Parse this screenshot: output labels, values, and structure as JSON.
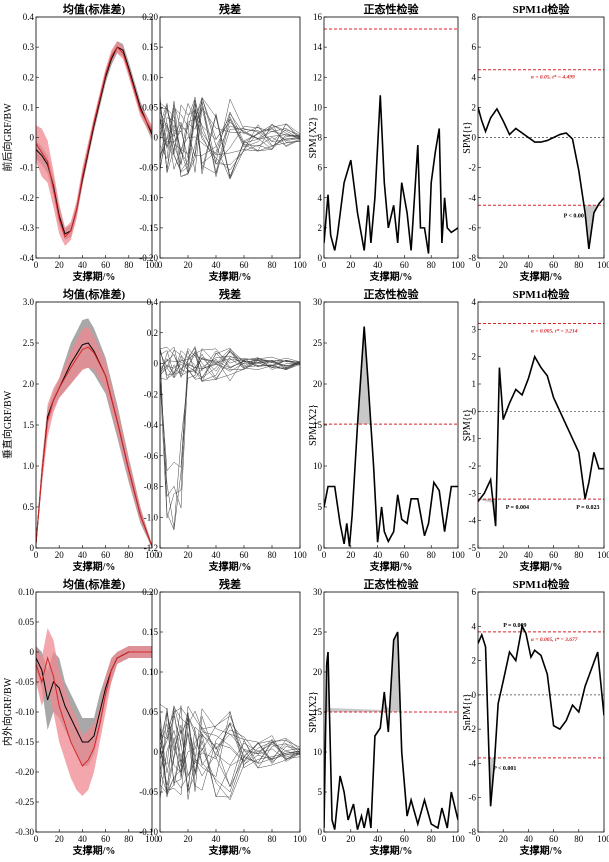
{
  "chart_data": [
    {
      "type": "line",
      "row": 0,
      "col": 0,
      "kind": "mean",
      "title": "均值(标准差)",
      "xlabel": "支撑期/%",
      "ylabel": "前后向GRF/BW",
      "xlim": [
        0,
        100
      ],
      "ylim": [
        -0.4,
        0.4
      ],
      "yticks": [
        "-0.4",
        "-0.3",
        "-0.2",
        "-0.1",
        "0",
        "0.1",
        "0.2",
        "0.3",
        "0.4"
      ],
      "x": [
        0,
        5,
        10,
        15,
        20,
        25,
        30,
        35,
        40,
        50,
        60,
        65,
        70,
        75,
        80,
        90,
        100
      ],
      "series": [
        {
          "values": [
            -0.04,
            -0.06,
            -0.09,
            -0.16,
            -0.26,
            -0.32,
            -0.31,
            -0.24,
            -0.14,
            0.04,
            0.2,
            0.26,
            0.3,
            0.29,
            0.23,
            0.1,
            0.01
          ],
          "sd": [
            0.03,
            0.03,
            0.03,
            0.03,
            0.03,
            0.02,
            0.02,
            0.02,
            0.02,
            0.02,
            0.02,
            0.02,
            0.02,
            0.02,
            0.02,
            0.02,
            0.02
          ],
          "color": "#000000",
          "band": "#999999"
        },
        {
          "values": [
            -0.02,
            -0.05,
            -0.08,
            -0.17,
            -0.27,
            -0.33,
            -0.31,
            -0.24,
            -0.13,
            0.05,
            0.21,
            0.27,
            0.3,
            0.28,
            0.22,
            0.09,
            0.02
          ],
          "sd": [
            0.06,
            0.08,
            0.07,
            0.06,
            0.05,
            0.03,
            0.03,
            0.03,
            0.03,
            0.02,
            0.02,
            0.02,
            0.02,
            0.02,
            0.02,
            0.02,
            0.02
          ],
          "color": "#d62728",
          "band": "#ef8a92"
        }
      ]
    },
    {
      "type": "line",
      "row": 0,
      "col": 1,
      "kind": "resid",
      "title": "残差",
      "xlabel": "支撑期/%",
      "ylabel": "",
      "xlim": [
        0,
        100
      ],
      "ylim": [
        -0.2,
        0.2
      ],
      "yticks": [
        "-0.20",
        "-0.15",
        "-0.10",
        "-0.05",
        "0",
        "0.05",
        "0.10",
        "0.15",
        "0.20"
      ],
      "nlines": 18,
      "amp": 0.07,
      "seed": 11,
      "spike": 0
    },
    {
      "type": "line",
      "row": 0,
      "col": 2,
      "kind": "spm",
      "title": "正态性检验",
      "xlabel": "支撑期/%",
      "ylabel": "SPM{X2}",
      "xlim": [
        0,
        100
      ],
      "ylim": [
        0,
        16
      ],
      "yticks": [
        "0",
        "2",
        "4",
        "6",
        "8",
        "10",
        "12",
        "14",
        "16"
      ],
      "threshold": 15.2,
      "x": [
        0,
        3,
        5,
        8,
        10,
        15,
        20,
        25,
        30,
        33,
        35,
        38,
        42,
        45,
        48,
        52,
        55,
        58,
        62,
        65,
        70,
        72,
        75,
        78,
        80,
        83,
        86,
        88,
        90,
        92,
        95,
        100
      ],
      "values": [
        1,
        4.2,
        1.5,
        0.5,
        1.5,
        5,
        6.5,
        3,
        0.5,
        3.5,
        1,
        4,
        10.8,
        5,
        2,
        3.5,
        1,
        5,
        3,
        0.5,
        7.5,
        2,
        2,
        0.3,
        5,
        7,
        8.6,
        1,
        4,
        2,
        1.7,
        2
      ]
    },
    {
      "type": "line",
      "row": 0,
      "col": 3,
      "kind": "spmt",
      "title": "SPM1d检验",
      "xlabel": "支撑期/%",
      "ylabel": "SPM{t}",
      "xlim": [
        0,
        100
      ],
      "ylim": [
        -8,
        8
      ],
      "yticks": [
        "-8",
        "-6",
        "-4",
        "-2",
        "0",
        "2",
        "4",
        "6",
        "8"
      ],
      "threshold": 4.499,
      "annotation": "α = 0.05, t* = 4.499",
      "pvalues": [
        "P < 0.001"
      ],
      "x": [
        0,
        3,
        6,
        10,
        15,
        20,
        25,
        30,
        35,
        40,
        45,
        50,
        55,
        60,
        65,
        70,
        75,
        80,
        85,
        88,
        92,
        96,
        100
      ],
      "values": [
        2,
        1.1,
        0.4,
        1.3,
        1.9,
        1.1,
        0.2,
        0.6,
        0.3,
        0,
        -0.3,
        -0.3,
        -0.2,
        0,
        0.2,
        0.3,
        -0.1,
        -2.2,
        -5,
        -7.4,
        -5,
        -4.4,
        -4
      ]
    },
    {
      "type": "line",
      "row": 1,
      "col": 0,
      "kind": "mean",
      "title": "均值(标准差)",
      "xlabel": "支撑期/%",
      "ylabel": "垂直向GRF/BW",
      "xlim": [
        0,
        100
      ],
      "ylim": [
        0,
        3
      ],
      "yticks": [
        "0",
        "0.5",
        "1.0",
        "1.5",
        "2.0",
        "2.5",
        "3.0"
      ],
      "x": [
        0,
        5,
        10,
        15,
        20,
        30,
        40,
        45,
        50,
        60,
        70,
        80,
        90,
        100
      ],
      "series": [
        {
          "values": [
            0.05,
            0.9,
            1.6,
            1.8,
            1.95,
            2.25,
            2.48,
            2.5,
            2.4,
            2.1,
            1.55,
            0.95,
            0.4,
            0.02
          ],
          "sd": [
            0.05,
            0.1,
            0.1,
            0.1,
            0.12,
            0.25,
            0.3,
            0.3,
            0.28,
            0.22,
            0.2,
            0.15,
            0.1,
            0.02
          ],
          "color": "#000000",
          "band": "#999999"
        },
        {
          "values": [
            0.05,
            0.9,
            1.55,
            1.8,
            1.95,
            2.2,
            2.42,
            2.45,
            2.38,
            2.1,
            1.55,
            0.95,
            0.4,
            0.02
          ],
          "sd": [
            0.05,
            0.15,
            0.2,
            0.15,
            0.12,
            0.2,
            0.25,
            0.25,
            0.2,
            0.18,
            0.15,
            0.12,
            0.08,
            0.02
          ],
          "color": "#d62728",
          "band": "#ef8a92"
        }
      ]
    },
    {
      "type": "line",
      "row": 1,
      "col": 1,
      "kind": "resid",
      "title": "残差",
      "xlabel": "支撑期/%",
      "ylabel": "",
      "xlim": [
        0,
        100
      ],
      "ylim": [
        -1.2,
        0.4
      ],
      "yticks": [
        "-1.2",
        "-1.0",
        "-0.8",
        "-0.6",
        "-0.4",
        "-0.2",
        "0",
        "0.2",
        "0.4"
      ],
      "nlines": 18,
      "amp": 0.12,
      "seed": 23,
      "spike": -1.1
    },
    {
      "type": "line",
      "row": 1,
      "col": 2,
      "kind": "spm",
      "title": "正态性检验",
      "xlabel": "支撑期/%",
      "ylabel": "SPM{X2}",
      "xlim": [
        0,
        100
      ],
      "ylim": [
        0,
        30
      ],
      "yticks": [
        "0",
        "5",
        "10",
        "15",
        "20",
        "25",
        "30"
      ],
      "threshold": 15.1,
      "x": [
        0,
        3,
        8,
        12,
        15,
        17,
        19,
        21,
        25,
        30,
        33,
        37,
        40,
        43,
        45,
        48,
        52,
        55,
        58,
        62,
        65,
        70,
        75,
        78,
        82,
        86,
        90,
        95
      ],
      "values": [
        5,
        7.5,
        7.5,
        3,
        0.5,
        3,
        0.2,
        4,
        15,
        27,
        20,
        10,
        0.7,
        5,
        2,
        0.8,
        2,
        6.5,
        3.5,
        3,
        6,
        6,
        1.5,
        3,
        8,
        7,
        2,
        7.5
      ]
    },
    {
      "type": "line",
      "row": 1,
      "col": 3,
      "kind": "spmt",
      "title": "SPM1d检验",
      "xlabel": "支撑期/%",
      "ylabel": "SPM{t}",
      "xlim": [
        0,
        100
      ],
      "ylim": [
        -5,
        4
      ],
      "yticks": [
        "-5",
        "-4",
        "-3",
        "-2",
        "-1",
        "0",
        "1",
        "2",
        "3",
        "4"
      ],
      "threshold": 3.214,
      "annotation": "α = 0.005, t* = 3.214",
      "pvalues": [
        "P = 0.004",
        "P = 0.023"
      ],
      "x": [
        0,
        5,
        10,
        14,
        17,
        20,
        25,
        30,
        35,
        40,
        45,
        50,
        55,
        60,
        70,
        80,
        85,
        88,
        92,
        96
      ],
      "values": [
        -3.3,
        -3.0,
        -2.5,
        -4.2,
        1.6,
        -0.3,
        0.3,
        0.8,
        0.6,
        1.2,
        2.0,
        1.6,
        1.3,
        0.5,
        -0.5,
        -1.5,
        -3.2,
        -2.6,
        -1.5,
        -2.1
      ]
    },
    {
      "type": "line",
      "row": 2,
      "col": 0,
      "kind": "mean",
      "title": "均值(标准差)",
      "xlabel": "支撑期/%",
      "ylabel": "内外向GRF/BW",
      "xlim": [
        0,
        100
      ],
      "ylim": [
        -0.3,
        0.1
      ],
      "yticks": [
        "-0.30",
        "-0.25",
        "-0.20",
        "-0.15",
        "-0.10",
        "-0.05",
        "0",
        "0.05",
        "0.10"
      ],
      "x": [
        0,
        5,
        10,
        15,
        20,
        25,
        30,
        35,
        40,
        45,
        50,
        55,
        60,
        65,
        70,
        80,
        90,
        100
      ],
      "series": [
        {
          "values": [
            -0.01,
            -0.03,
            -0.08,
            -0.05,
            -0.06,
            -0.09,
            -0.11,
            -0.13,
            -0.15,
            -0.15,
            -0.14,
            -0.1,
            -0.06,
            -0.03,
            -0.01,
            0,
            0,
            0
          ],
          "sd": [
            0.02,
            0.03,
            0.05,
            0.05,
            0.05,
            0.04,
            0.04,
            0.04,
            0.04,
            0.04,
            0.03,
            0.03,
            0.02,
            0.02,
            0.01,
            0.01,
            0.01,
            0.01
          ],
          "color": "#000000",
          "band": "#999999"
        },
        {
          "values": [
            -0.02,
            -0.05,
            -0.01,
            -0.04,
            -0.09,
            -0.12,
            -0.15,
            -0.17,
            -0.19,
            -0.18,
            -0.16,
            -0.12,
            -0.07,
            -0.03,
            -0.01,
            0,
            0,
            0
          ],
          "sd": [
            0.03,
            0.04,
            0.05,
            0.06,
            0.06,
            0.06,
            0.06,
            0.06,
            0.05,
            0.05,
            0.04,
            0.03,
            0.03,
            0.02,
            0.01,
            0.01,
            0.01,
            0.01
          ],
          "color": "#d62728",
          "band": "#ef8a92"
        }
      ]
    },
    {
      "type": "line",
      "row": 2,
      "col": 1,
      "kind": "resid",
      "title": "残差",
      "xlabel": "支撑期/%",
      "ylabel": "",
      "xlim": [
        0,
        100
      ],
      "ylim": [
        -0.1,
        0.2
      ],
      "yticks": [
        "-0.10",
        "-0.05",
        "0",
        "0.05",
        "0.10",
        "0.15",
        "0.20"
      ],
      "nlines": 18,
      "amp": 0.06,
      "seed": 37,
      "spike": 0
    },
    {
      "type": "line",
      "row": 2,
      "col": 2,
      "kind": "spm",
      "title": "正态性检验",
      "xlabel": "支撑期/%",
      "ylabel": "SPM{X2}",
      "xlim": [
        0,
        100
      ],
      "ylim": [
        0,
        30
      ],
      "yticks": [
        "0",
        "5",
        "10",
        "15",
        "20",
        "25",
        "30"
      ],
      "threshold": 15,
      "x": [
        0,
        2,
        3,
        6,
        8,
        12,
        15,
        18,
        22,
        25,
        28,
        30,
        33,
        35,
        38,
        42,
        45,
        48,
        52,
        55,
        58,
        62,
        65,
        70,
        75,
        80,
        85,
        88,
        92,
        95,
        100
      ],
      "values": [
        0.5,
        21,
        22.5,
        1.5,
        0.3,
        7,
        5,
        1.5,
        3.5,
        0.3,
        2,
        0.5,
        3,
        0.5,
        12,
        13,
        17.5,
        12.5,
        24,
        25,
        10,
        2,
        4,
        1,
        4,
        1,
        0.5,
        3,
        0.5,
        5,
        1.5
      ]
    },
    {
      "type": "line",
      "row": 2,
      "col": 3,
      "kind": "spmt",
      "title": "SPM1d检验",
      "xlabel": "支撑期/%",
      "ylabel": "SnPM{t}",
      "xlim": [
        0,
        100
      ],
      "ylim": [
        -8,
        6
      ],
      "yticks": [
        "-8",
        "-6",
        "-4",
        "-2",
        "0",
        "2",
        "4",
        "6"
      ],
      "threshold": 3.677,
      "annotation": "α = 0.005, t* = 3.677",
      "pvalues": [
        "P = 0.009",
        "P < 0.001"
      ],
      "x": [
        0,
        3,
        6,
        10,
        13,
        16,
        20,
        25,
        30,
        35,
        38,
        42,
        45,
        50,
        55,
        60,
        65,
        70,
        75,
        80,
        85,
        90,
        95,
        100
      ],
      "values": [
        3,
        3.5,
        2.8,
        -6.5,
        -4,
        -0.5,
        0.8,
        2.5,
        2,
        4,
        3.6,
        2.2,
        2.6,
        2.3,
        1.2,
        -1.8,
        -2,
        -1.5,
        -0.6,
        -1,
        0.5,
        1.5,
        2.5,
        -1.2
      ]
    }
  ]
}
